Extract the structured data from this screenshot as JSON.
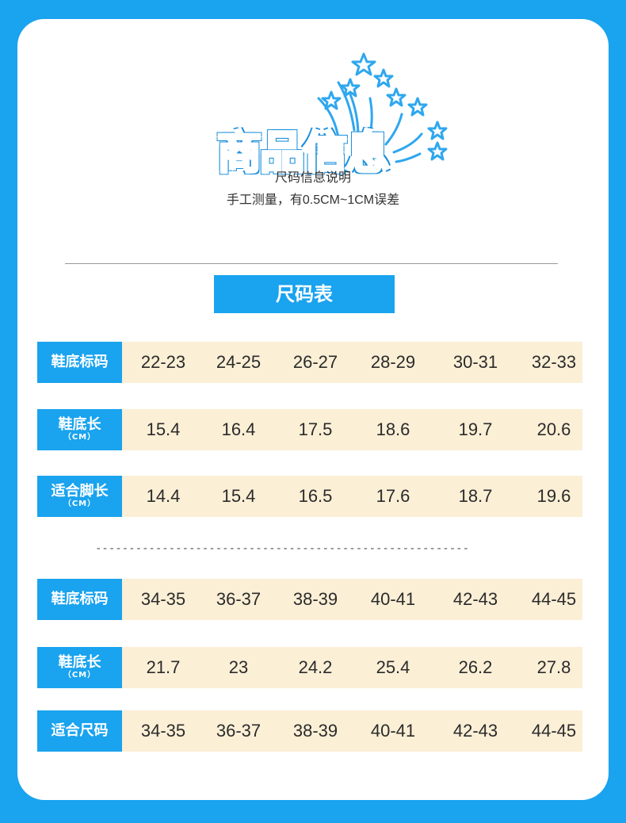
{
  "header": {
    "title": "商品信息",
    "subtitle_line1": "尺码信息说明",
    "subtitle_line2": "手工测量，有0.5CM~1CM误差"
  },
  "size_table_title": "尺码表",
  "divider": "--------------------------------------------------------",
  "table1": [
    {
      "label": "鞋底标码",
      "unit": "",
      "values": [
        "22-23",
        "24-25",
        "26-27",
        "28-29",
        "30-31",
        "32-33"
      ]
    },
    {
      "label": "鞋底长",
      "unit": "（CM）",
      "values": [
        "15.4",
        "16.4",
        "17.5",
        "18.6",
        "19.7",
        "20.6"
      ]
    },
    {
      "label": "适合脚长",
      "unit": "（CM）",
      "values": [
        "14.4",
        "15.4",
        "16.5",
        "17.6",
        "18.7",
        "19.6"
      ]
    }
  ],
  "table2": [
    {
      "label": "鞋底标码",
      "unit": "",
      "values": [
        "34-35",
        "36-37",
        "38-39",
        "40-41",
        "42-43",
        "44-45"
      ]
    },
    {
      "label": "鞋底长",
      "unit": "（CM）",
      "values": [
        "21.7",
        "23",
        "24.2",
        "25.4",
        "26.2",
        "27.8"
      ]
    },
    {
      "label": "适合尺码",
      "unit": "",
      "values": [
        "34-35",
        "36-37",
        "38-39",
        "40-41",
        "42-43",
        "44-45"
      ]
    }
  ],
  "colors": {
    "accent": "#1aa3ee",
    "cell_bg": "#fbefd6"
  },
  "icons": {
    "decoration": "fireworks-stars-icon"
  }
}
